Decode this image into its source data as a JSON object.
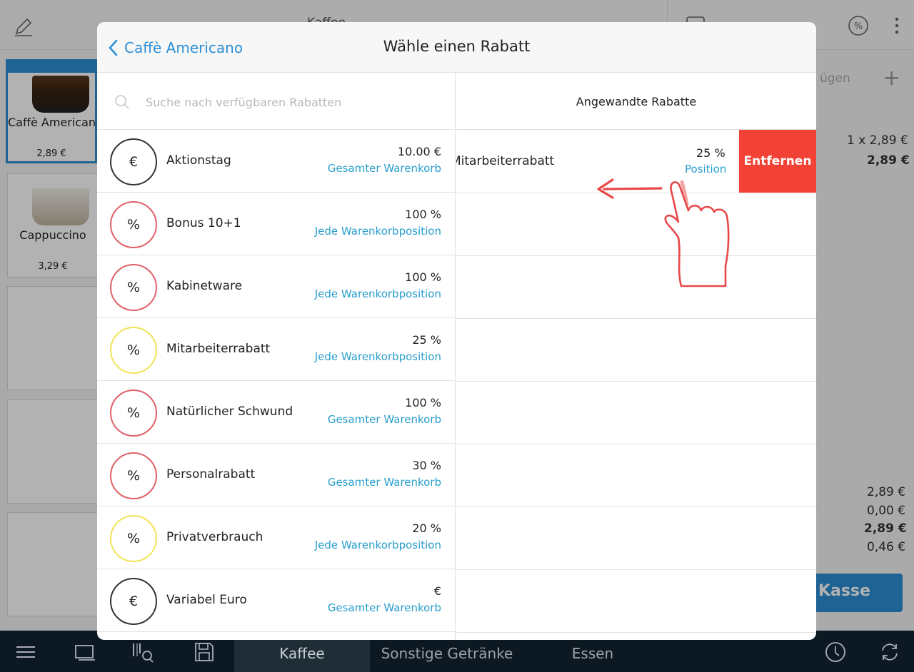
{
  "background": {
    "products": [
      {
        "name": "Caffè Americano",
        "price": "2,89 €"
      },
      {
        "name": "Cappuccino",
        "price": "3,29 €"
      }
    ],
    "top_center_label": "Kaffee",
    "cart_partial_label": "ügen",
    "cart_line_qty": "1 x 2,89 €",
    "cart_line_total": "2,89 €",
    "summary_values": [
      "2,89 €",
      "0,00 €",
      "2,89 €",
      "0,46 €"
    ],
    "checkout_label": "Kasse"
  },
  "bottom_bar": {
    "tabs": [
      "Kaffee",
      "Sonstige Getränke",
      "Essen"
    ],
    "active_tab": "Kaffee"
  },
  "modal": {
    "back_label": "Caffè Americano",
    "title": "Wähle einen Rabatt",
    "search_placeholder": "Suche nach verfügbaren Rabatten",
    "discounts": [
      {
        "symbol": "€",
        "name": "Aktionstag",
        "value": "10.00 €",
        "scope": "Gesamter Warenkorb",
        "color": "#333333"
      },
      {
        "symbol": "%",
        "name": "Bonus 10+1",
        "value": "100 %",
        "scope": "Jede Warenkorbposition",
        "color": "#e0606a"
      },
      {
        "symbol": "%",
        "name": "Kabinetware",
        "value": "100 %",
        "scope": "Jede Warenkorbposition",
        "color": "#e0606a"
      },
      {
        "symbol": "%",
        "name": "Mitarbeiterrabatt",
        "value": "25 %",
        "scope": "Jede Warenkorbposition",
        "color": "#f2e35a"
      },
      {
        "symbol": "%",
        "name": "Natürlicher Schwund",
        "value": "100 %",
        "scope": "Gesamter Warenkorb",
        "color": "#e0606a"
      },
      {
        "symbol": "%",
        "name": "Personalrabatt",
        "value": "30 %",
        "scope": "Gesamter Warenkorb",
        "color": "#e0606a"
      },
      {
        "symbol": "%",
        "name": "Privatverbrauch",
        "value": "20 %",
        "scope": "Jede Warenkorbposition",
        "color": "#f2e35a"
      },
      {
        "symbol": "€",
        "name": "Variabel Euro",
        "value": "€",
        "scope": "Gesamter Warenkorb",
        "color": "#333333"
      }
    ],
    "applied_header": "Angewandte Rabatte",
    "applied": {
      "name": "Mitarbeiterrabatt",
      "value": "25 %",
      "scope": "Position",
      "remove_label": "Entfernen"
    }
  },
  "colors": {
    "accent": "#2d8fd5",
    "scope_text": "#2a9fce",
    "remove": "#f24236",
    "gesture": "#e8484a"
  }
}
